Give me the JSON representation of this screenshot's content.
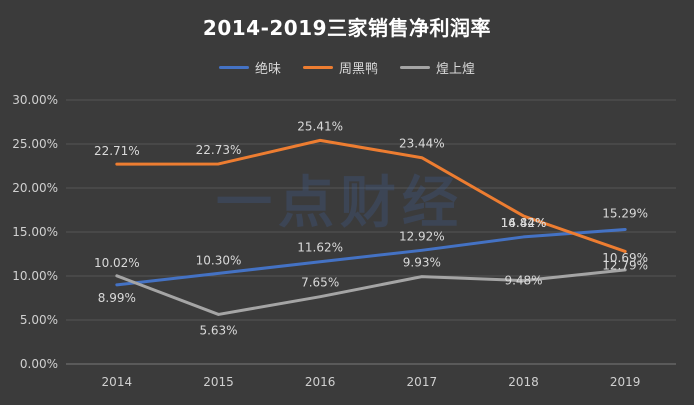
{
  "chart_data": {
    "type": "line",
    "title": "2014-2019三家销售净利润率",
    "categories": [
      "2014",
      "2015",
      "2016",
      "2017",
      "2018",
      "2019"
    ],
    "ylim": [
      0,
      30
    ],
    "yticks": [
      "0.00%",
      "5.00%",
      "10.00%",
      "15.00%",
      "20.00%",
      "25.00%",
      "30.00%"
    ],
    "ytick_values": [
      0,
      5,
      10,
      15,
      20,
      25,
      30
    ],
    "grid": true,
    "legend_position": "top",
    "series": [
      {
        "name": "绝味",
        "color": "#4472c4",
        "values": [
          8.99,
          10.3,
          11.62,
          12.92,
          14.44,
          15.29
        ],
        "labels": [
          "8.99%",
          "10.30%",
          "11.62%",
          "12.92%",
          "14.44%",
          "15.29%"
        ]
      },
      {
        "name": "周黑鸭",
        "color": "#ed7d31",
        "values": [
          22.71,
          22.73,
          25.41,
          23.44,
          16.82,
          12.79
        ],
        "labels": [
          "22.71%",
          "22.73%",
          "25.41%",
          "23.44%",
          "16.82%",
          "12.79%"
        ]
      },
      {
        "name": "煌上煌",
        "color": "#a5a5a5",
        "values": [
          10.02,
          5.63,
          7.65,
          9.93,
          9.48,
          10.69
        ],
        "labels": [
          "10.02%",
          "5.63%",
          "7.65%",
          "9.93%",
          "9.48%",
          "10.69%"
        ]
      }
    ]
  },
  "watermark": {
    "text": "一点财经"
  }
}
